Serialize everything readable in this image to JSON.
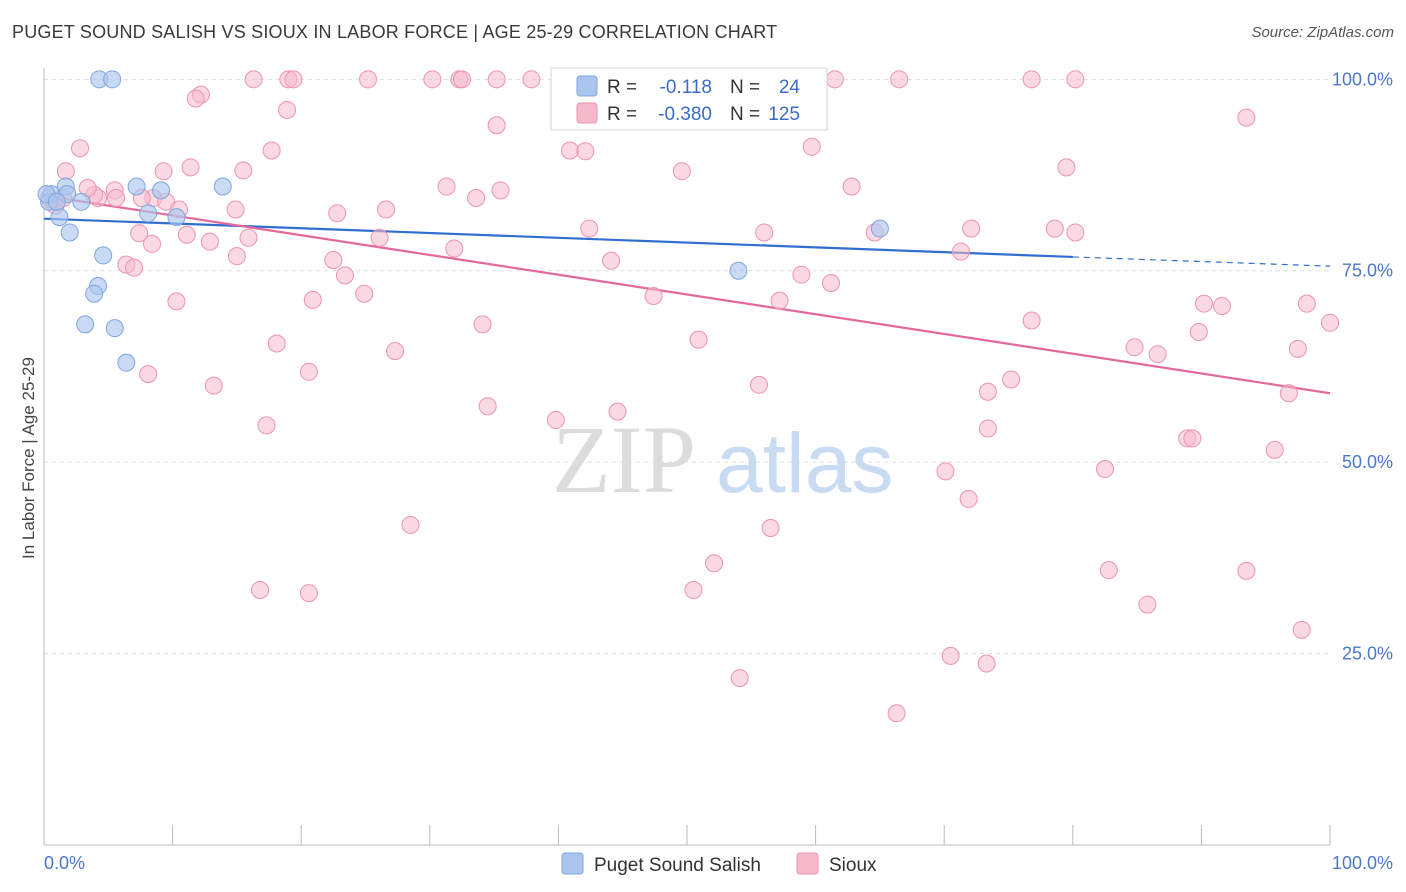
{
  "title": "PUGET SOUND SALISH VS SIOUX IN LABOR FORCE | AGE 25-29 CORRELATION CHART",
  "source": "Source: ZipAtlas.com",
  "watermark": {
    "zip": "ZIP",
    "atlas": "atlas"
  },
  "colors": {
    "blue_fill": "#aac6ee",
    "blue_stroke": "#7fa6de",
    "blue_line": "#2f6fcf",
    "pink_fill": "#f6b9cc",
    "pink_stroke": "#ee93b0",
    "pink_line": "#e3699a",
    "tick_color": "#4a78c8",
    "grid": "#dddddd"
  },
  "legend": {
    "rows": [
      {
        "r_label": "R =",
        "r_value": "-0.118",
        "n_label": "N =",
        "n_value": "24"
      },
      {
        "r_label": "R =",
        "r_value": "-0.380",
        "n_label": "N =",
        "n_value": "125"
      }
    ]
  },
  "chart_data": {
    "type": "scatter",
    "title": "PUGET SOUND SALISH VS SIOUX IN LABOR FORCE | AGE 25-29 CORRELATION CHART",
    "xlabel": "",
    "ylabel": "In Labor Force | Age 25-29",
    "xlim": [
      0,
      100
    ],
    "ylim": [
      0,
      102
    ],
    "x_tick_labels": [
      "0.0%",
      "100.0%"
    ],
    "y_ticks": [
      25,
      50,
      75,
      100
    ],
    "y_tick_labels": [
      "25.0%",
      "50.0%",
      "75.0%",
      "100.0%"
    ],
    "grid": true,
    "legend_position": "top-center",
    "series": [
      {
        "name": "Puget Sound Salish",
        "r": -0.118,
        "n": 24,
        "trend": {
          "x": [
            0,
            80
          ],
          "y": [
            81.8,
            76.8
          ],
          "dashed_extension_to": [
            100,
            75.6
          ]
        },
        "points": [
          [
            4.3,
            100
          ],
          [
            5.3,
            100
          ],
          [
            0.6,
            85
          ],
          [
            1.7,
            86
          ],
          [
            1.8,
            85
          ],
          [
            2.9,
            84
          ],
          [
            1.2,
            82
          ],
          [
            2.0,
            80
          ],
          [
            7.2,
            86
          ],
          [
            9.1,
            85.5
          ],
          [
            13.9,
            86
          ],
          [
            8.1,
            82.5
          ],
          [
            10.3,
            82
          ],
          [
            4.6,
            77
          ],
          [
            4.2,
            73
          ],
          [
            3.9,
            72
          ],
          [
            3.2,
            68
          ],
          [
            5.5,
            67.5
          ],
          [
            6.4,
            63
          ],
          [
            54.0,
            75
          ],
          [
            65.0,
            80.5
          ],
          [
            0.4,
            84
          ],
          [
            0.2,
            85
          ],
          [
            1.0,
            84
          ]
        ]
      },
      {
        "name": "Sioux",
        "r": -0.38,
        "n": 125,
        "trend": {
          "x": [
            0,
            100
          ],
          "y": [
            84.8,
            59
          ]
        },
        "points": [
          [
            16.3,
            100
          ],
          [
            19,
            100
          ],
          [
            19.4,
            100
          ],
          [
            25.2,
            100
          ],
          [
            30.2,
            100
          ],
          [
            32.3,
            100
          ],
          [
            32.5,
            100
          ],
          [
            35.2,
            100
          ],
          [
            37.9,
            100
          ],
          [
            46.5,
            100
          ],
          [
            49.8,
            100
          ],
          [
            61.5,
            100
          ],
          [
            66.5,
            100
          ],
          [
            76.8,
            100
          ],
          [
            80.2,
            100
          ],
          [
            12.2,
            98
          ],
          [
            11.8,
            97.5
          ],
          [
            18.9,
            96
          ],
          [
            93.5,
            95
          ],
          [
            35.2,
            94
          ],
          [
            79.5,
            88.5
          ],
          [
            59.7,
            91.2
          ],
          [
            2.8,
            91
          ],
          [
            17.7,
            90.7
          ],
          [
            40.9,
            90.7
          ],
          [
            42.1,
            90.6
          ],
          [
            5.5,
            85.5
          ],
          [
            11.4,
            88.5
          ],
          [
            15.5,
            88.1
          ],
          [
            1.7,
            88
          ],
          [
            9.3,
            88
          ],
          [
            49.6,
            88
          ],
          [
            31.3,
            86
          ],
          [
            33.6,
            84.5
          ],
          [
            35.5,
            85.5
          ],
          [
            62.8,
            86
          ],
          [
            8.5,
            84.5
          ],
          [
            7.6,
            84.5
          ],
          [
            4.2,
            84.5
          ],
          [
            5.6,
            84.5
          ],
          [
            3.9,
            84.9
          ],
          [
            0.8,
            84.1
          ],
          [
            0.4,
            84.5
          ],
          [
            0.9,
            83.5
          ],
          [
            1.5,
            84.5
          ],
          [
            3.4,
            85.8
          ],
          [
            9.5,
            84
          ],
          [
            10.5,
            83
          ],
          [
            14.9,
            83
          ],
          [
            22.8,
            82.5
          ],
          [
            26.6,
            83
          ],
          [
            80.2,
            80
          ],
          [
            78.6,
            80.5
          ],
          [
            72.1,
            80.5
          ],
          [
            64.6,
            80
          ],
          [
            56.0,
            80
          ],
          [
            42.4,
            80.5
          ],
          [
            7.4,
            79.9
          ],
          [
            11.1,
            79.7
          ],
          [
            15.9,
            79.3
          ],
          [
            26.1,
            79.3
          ],
          [
            8.4,
            78.5
          ],
          [
            12.9,
            78.8
          ],
          [
            31.9,
            77.9
          ],
          [
            71.3,
            77.5
          ],
          [
            15.0,
            76.9
          ],
          [
            22.5,
            76.4
          ],
          [
            44.1,
            76.3
          ],
          [
            6.4,
            75.8
          ],
          [
            7.0,
            75.4
          ],
          [
            23.4,
            74.4
          ],
          [
            58.9,
            74.5
          ],
          [
            61.2,
            73.4
          ],
          [
            20.9,
            71.2
          ],
          [
            24.9,
            72
          ],
          [
            47.4,
            71.7
          ],
          [
            57.2,
            71.1
          ],
          [
            10.3,
            71
          ],
          [
            90.2,
            70.7
          ],
          [
            91.6,
            70.4
          ],
          [
            98.2,
            70.7
          ],
          [
            34.1,
            68
          ],
          [
            76.8,
            68.5
          ],
          [
            89.8,
            67
          ],
          [
            100,
            68.2
          ],
          [
            18.1,
            65.5
          ],
          [
            50.9,
            66
          ],
          [
            84.8,
            65
          ],
          [
            86.6,
            64.1
          ],
          [
            97.5,
            64.8
          ],
          [
            27.3,
            64.5
          ],
          [
            20.6,
            61.8
          ],
          [
            8.1,
            61.5
          ],
          [
            55.6,
            60.1
          ],
          [
            13.2,
            60
          ],
          [
            75.2,
            60.8
          ],
          [
            73.4,
            59.2
          ],
          [
            96.8,
            59
          ],
          [
            34.5,
            57.3
          ],
          [
            39.8,
            55.5
          ],
          [
            44.6,
            56.6
          ],
          [
            17.3,
            54.8
          ],
          [
            73.4,
            54.4
          ],
          [
            88.9,
            53.1
          ],
          [
            89.3,
            53.1
          ],
          [
            95.7,
            51.6
          ],
          [
            82.5,
            49.1
          ],
          [
            70.1,
            48.8
          ],
          [
            71.9,
            45.2
          ],
          [
            28.5,
            41.8
          ],
          [
            56.5,
            41.4
          ],
          [
            52.1,
            36.8
          ],
          [
            82.8,
            35.9
          ],
          [
            93.5,
            35.8
          ],
          [
            16.8,
            33.3
          ],
          [
            20.6,
            32.9
          ],
          [
            50.5,
            33.3
          ],
          [
            85.8,
            31.4
          ],
          [
            97.8,
            28.1
          ],
          [
            70.5,
            24.7
          ],
          [
            73.3,
            23.7
          ],
          [
            54.1,
            21.8
          ],
          [
            66.3,
            17.2
          ]
        ]
      }
    ]
  }
}
